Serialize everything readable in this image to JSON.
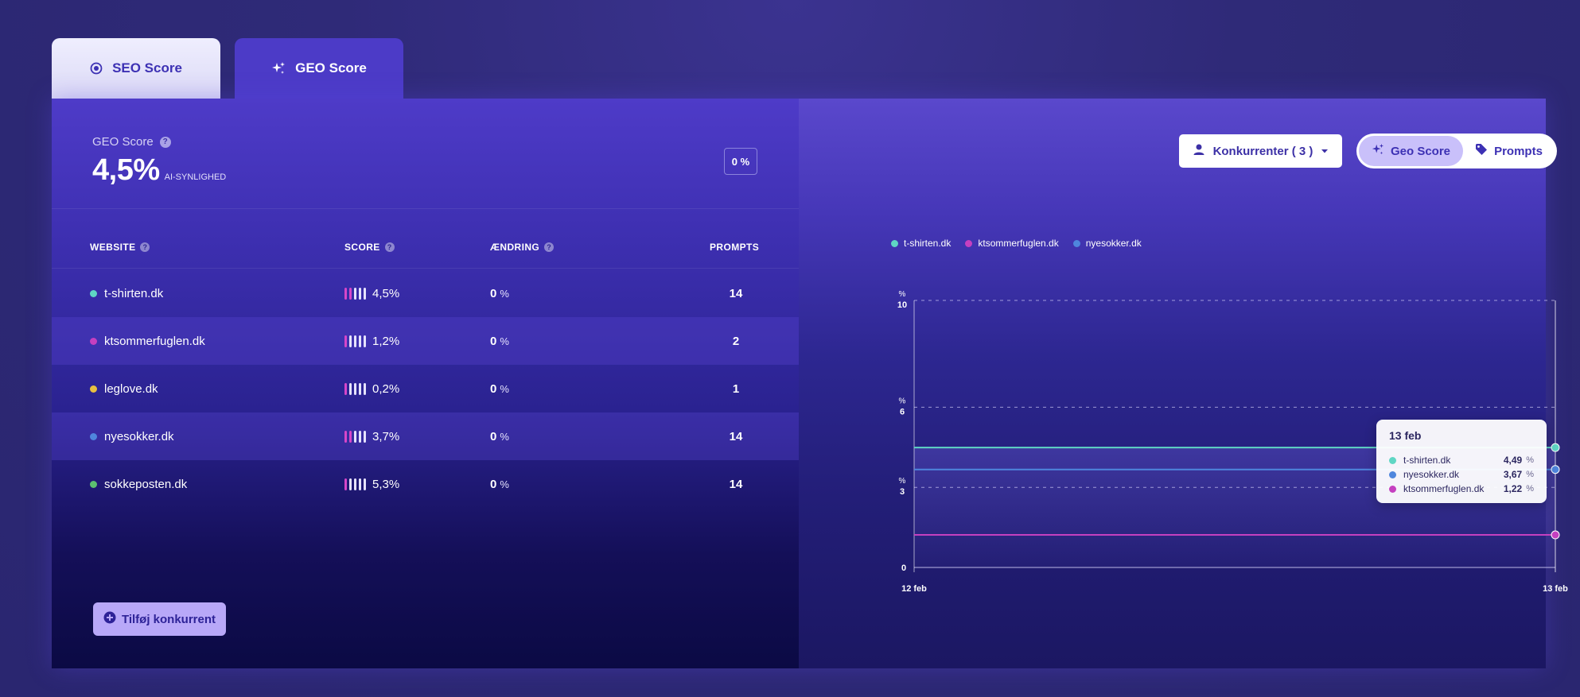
{
  "tabs": [
    {
      "label": "SEO Score",
      "icon": "radio-icon"
    },
    {
      "label": "GEO Score",
      "icon": "sparkles-icon"
    }
  ],
  "summary": {
    "label": "GEO Score",
    "value": "4,5%",
    "sublabel": "AI-SYNLIGHED",
    "change_box": "0 %"
  },
  "table": {
    "headers": {
      "website": "WEBSITE",
      "score": "SCORE",
      "change": "ÆNDRING",
      "prompts": "PROMPTS"
    },
    "rows": [
      {
        "site": "t-shirten.dk",
        "color": "#5fd6c4",
        "score": "4,5%",
        "bars_on": 2,
        "change": "0",
        "unit": "%",
        "prompts": "14"
      },
      {
        "site": "ktsommerfuglen.dk",
        "color": "#c540c0",
        "score": "1,2%",
        "bars_on": 1,
        "change": "0",
        "unit": "%",
        "prompts": "2"
      },
      {
        "site": "leglove.dk",
        "color": "#e8c040",
        "score": "0,2%",
        "bars_on": 1,
        "change": "0",
        "unit": "%",
        "prompts": "1"
      },
      {
        "site": "nyesokker.dk",
        "color": "#4f86dd",
        "score": "3,7%",
        "bars_on": 2,
        "change": "0",
        "unit": "%",
        "prompts": "14"
      },
      {
        "site": "sokkeposten.dk",
        "color": "#5cc070",
        "score": "5,3%",
        "bars_on": 1,
        "change": "0",
        "unit": "%",
        "prompts": "14"
      }
    ]
  },
  "add_button": "Tilføj konkurrent",
  "controls": {
    "competitors": "Konkurrenter ( 3 )",
    "segment_geo": "Geo Score",
    "segment_prompts": "Prompts"
  },
  "colors": {
    "accent": "#4c3bc7",
    "teal": "#5fd6c4",
    "magenta": "#c540c0",
    "blue": "#4f86dd"
  },
  "chart_data": {
    "type": "line",
    "x": [
      "12 feb",
      "13 feb"
    ],
    "y_ticks": [
      {
        "value": 0,
        "label": "0",
        "unit": ""
      },
      {
        "value": 3,
        "label": "3",
        "unit": "%"
      },
      {
        "value": 6,
        "label": "6",
        "unit": "%"
      },
      {
        "value": 10,
        "label": "10",
        "unit": "%"
      }
    ],
    "ylim": [
      0,
      10
    ],
    "grid": true,
    "legend_position": "top-left",
    "series": [
      {
        "name": "t-shirten.dk",
        "color": "#5fd6c4",
        "values": [
          4.49,
          4.49
        ]
      },
      {
        "name": "ktsommerfuglen.dk",
        "color": "#c540c0",
        "values": [
          1.22,
          1.22
        ]
      },
      {
        "name": "nyesokker.dk",
        "color": "#4f86dd",
        "values": [
          3.67,
          3.67
        ]
      }
    ],
    "tooltip": {
      "date": "13 feb",
      "items": [
        {
          "name": "t-shirten.dk",
          "color": "#5fd6c4",
          "value": "4,49",
          "unit": "%"
        },
        {
          "name": "nyesokker.dk",
          "color": "#4f86dd",
          "value": "3,67",
          "unit": "%"
        },
        {
          "name": "ktsommerfuglen.dk",
          "color": "#c540c0",
          "value": "1,22",
          "unit": "%"
        }
      ]
    }
  }
}
